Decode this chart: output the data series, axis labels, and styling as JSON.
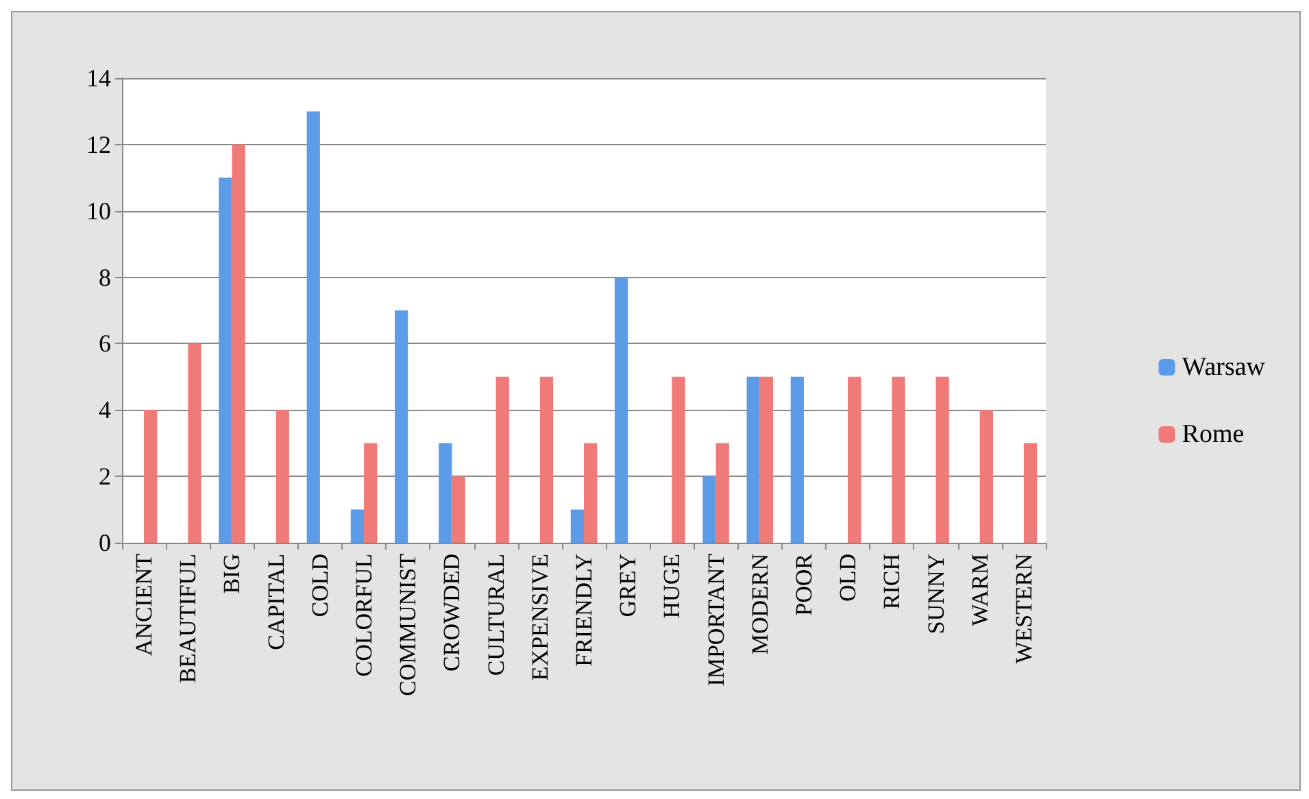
{
  "chart_data": {
    "type": "bar",
    "categories": [
      "ANCIENT",
      "BEAUTIFUL",
      "BIG",
      "CAPITAL",
      "COLD",
      "COLORFUL",
      "COMMUNIST",
      "CROWDED",
      "CULTURAL",
      "EXPENSIVE",
      "FRIENDLY",
      "GREY",
      "HUGE",
      "IMPORTANT",
      "MODERN",
      "POOR",
      "OLD",
      "RICH",
      "SUNNY",
      "WARM",
      "WESTERN"
    ],
    "series": [
      {
        "name": "Warsaw",
        "color": "#5b9be8",
        "values": [
          0,
          0,
          11,
          0,
          13,
          1,
          7,
          3,
          0,
          0,
          1,
          8,
          0,
          2,
          5,
          5,
          0,
          0,
          0,
          0,
          0
        ]
      },
      {
        "name": "Rome",
        "color": "#f07a78",
        "values": [
          4,
          6,
          12,
          4,
          0,
          3,
          0,
          2,
          5,
          5,
          3,
          0,
          5,
          3,
          5,
          0,
          5,
          5,
          5,
          4,
          3
        ]
      }
    ],
    "ylim": [
      0,
      14
    ],
    "yticks": [
      0,
      2,
      4,
      6,
      8,
      10,
      12,
      14
    ],
    "grid": "y",
    "legend": "right"
  }
}
